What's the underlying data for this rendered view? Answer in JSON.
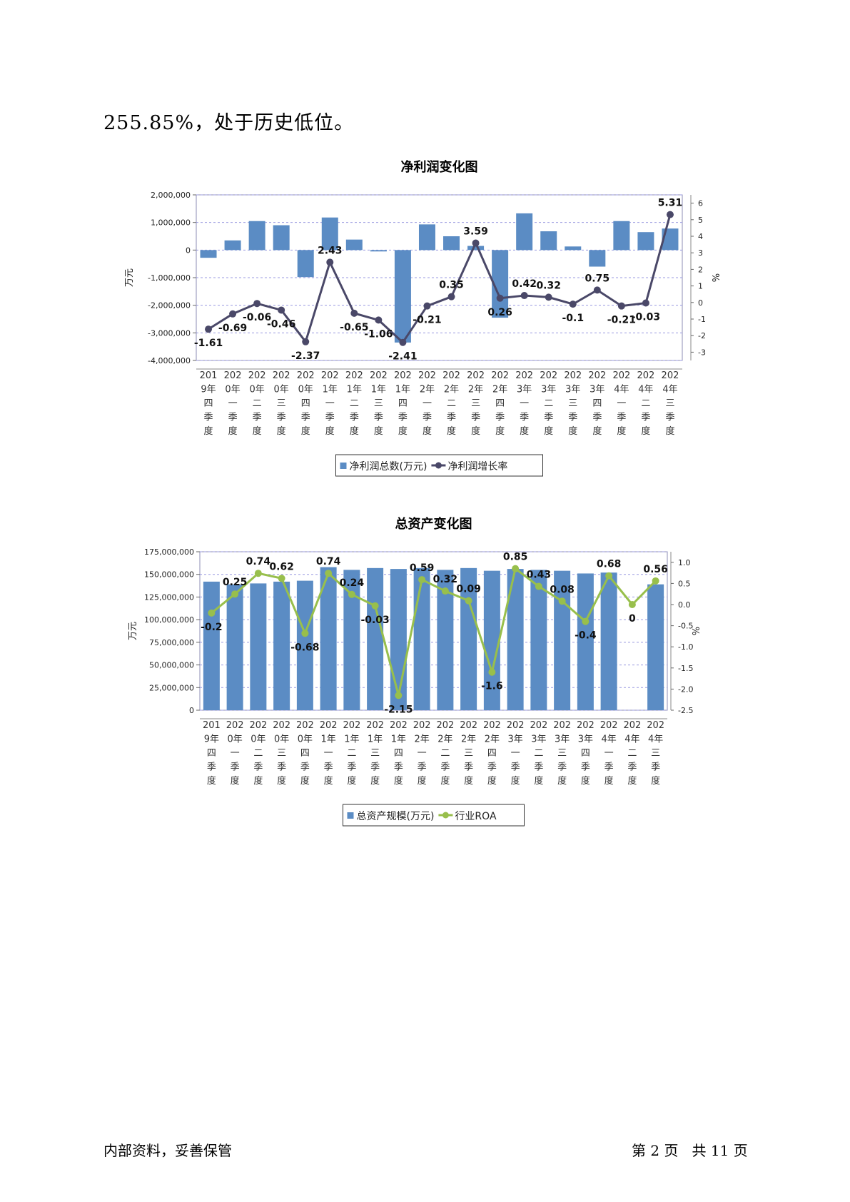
{
  "document": {
    "intro_text": "255.85%，处于历史低位。",
    "footer_left": "内部资料，妥善保管",
    "footer_page": {
      "prefix": "第",
      "current": "2",
      "mid": "页",
      "total_prefix": "共",
      "total": "11",
      "suffix": "页"
    }
  },
  "chart_data": [
    {
      "type": "bar+line",
      "title": "净利润变化图",
      "ylabel": "万元",
      "y2label": "%",
      "ylim": [
        -4000000,
        2000000
      ],
      "yticks": [
        2000000,
        1000000,
        0,
        -1000000,
        -2000000,
        -3000000,
        -4000000
      ],
      "ytick_labels": [
        "2,000,000",
        "1,000,000",
        "0",
        "-1,000,000",
        "-2,000,000",
        "-3,000,000",
        "-4,000,000"
      ],
      "y2lim": [
        -3.5,
        6.5
      ],
      "y2ticks": [
        "6",
        "5",
        "4",
        "3",
        "2",
        "1",
        "0",
        "-1",
        "-2",
        "-3"
      ],
      "categories": [
        [
          "201",
          "9年",
          "四",
          "季",
          "度"
        ],
        [
          "202",
          "0年",
          "一",
          "季",
          "度"
        ],
        [
          "202",
          "0年",
          "二",
          "季",
          "度"
        ],
        [
          "202",
          "0年",
          "三",
          "季",
          "度"
        ],
        [
          "202",
          "0年",
          "四",
          "季",
          "度"
        ],
        [
          "202",
          "1年",
          "一",
          "季",
          "度"
        ],
        [
          "202",
          "1年",
          "二",
          "季",
          "度"
        ],
        [
          "202",
          "1年",
          "三",
          "季",
          "度"
        ],
        [
          "202",
          "1年",
          "四",
          "季",
          "度"
        ],
        [
          "202",
          "2年",
          "一",
          "季",
          "度"
        ],
        [
          "202",
          "2年",
          "二",
          "季",
          "度"
        ],
        [
          "202",
          "2年",
          "三",
          "季",
          "度"
        ],
        [
          "202",
          "2年",
          "四",
          "季",
          "度"
        ],
        [
          "202",
          "3年",
          "一",
          "季",
          "度"
        ],
        [
          "202",
          "3年",
          "二",
          "季",
          "度"
        ],
        [
          "202",
          "3年",
          "三",
          "季",
          "度"
        ],
        [
          "202",
          "3年",
          "四",
          "季",
          "度"
        ],
        [
          "202",
          "4年",
          "一",
          "季",
          "度"
        ],
        [
          "202",
          "4年",
          "二",
          "季",
          "度"
        ],
        [
          "202",
          "4年",
          "三",
          "季",
          "度"
        ]
      ],
      "series": [
        {
          "name": "净利润总数(万元)",
          "type": "bar",
          "color": "#5b8cc4",
          "values": [
            -280000,
            350000,
            1050000,
            900000,
            -980000,
            1180000,
            380000,
            -50000,
            -3350000,
            930000,
            500000,
            150000,
            -2450000,
            1330000,
            680000,
            130000,
            -600000,
            1050000,
            650000,
            780000
          ]
        },
        {
          "name": "净利润增长率",
          "type": "line",
          "color": "#4a4868",
          "values": [
            -1.61,
            -0.69,
            -0.06,
            -0.46,
            -2.37,
            2.43,
            -0.65,
            -1.06,
            -2.41,
            -0.21,
            0.35,
            3.59,
            0.26,
            0.42,
            0.32,
            -0.1,
            0.75,
            -0.21,
            -0.03,
            5.31
          ],
          "labels": [
            "-1.61",
            "-0.69",
            "-0.06",
            "-0.46",
            "-2.37",
            "2.43",
            "-0.65",
            "-1.06",
            "-2.41",
            "-0.21",
            "0.35",
            "3.59",
            "0.26",
            "0.42",
            "0.32",
            "-0.1",
            "0.75",
            "-0.21",
            "-0.03",
            "5.31"
          ]
        }
      ],
      "legend": "bottom",
      "grid": true
    },
    {
      "type": "bar+line",
      "title": "总资产变化图",
      "ylabel": "万元",
      "y2label": "%",
      "ylim": [
        0,
        175000000
      ],
      "yticks": [
        175000000,
        150000000,
        125000000,
        100000000,
        75000000,
        50000000,
        25000000,
        0
      ],
      "ytick_labels": [
        "175,000,000",
        "150,000,000",
        "125,000,000",
        "100,000,000",
        "75,000,000",
        "50,000,000",
        "25,000,000",
        "0"
      ],
      "y2lim": [
        -2.5,
        1.25
      ],
      "y2ticks": [
        "1.0",
        "0.5",
        "0.0",
        "-0.5",
        "-1.0",
        "-1.5",
        "-2.0",
        "-2.5"
      ],
      "categories": [
        [
          "201",
          "9年",
          "四",
          "季",
          "度"
        ],
        [
          "202",
          "0年",
          "一",
          "季",
          "度"
        ],
        [
          "202",
          "0年",
          "二",
          "季",
          "度"
        ],
        [
          "202",
          "0年",
          "三",
          "季",
          "度"
        ],
        [
          "202",
          "0年",
          "四",
          "季",
          "度"
        ],
        [
          "202",
          "1年",
          "一",
          "季",
          "度"
        ],
        [
          "202",
          "1年",
          "二",
          "季",
          "度"
        ],
        [
          "202",
          "1年",
          "三",
          "季",
          "度"
        ],
        [
          "202",
          "1年",
          "四",
          "季",
          "度"
        ],
        [
          "202",
          "2年",
          "一",
          "季",
          "度"
        ],
        [
          "202",
          "2年",
          "二",
          "季",
          "度"
        ],
        [
          "202",
          "2年",
          "三",
          "季",
          "度"
        ],
        [
          "202",
          "2年",
          "四",
          "季",
          "度"
        ],
        [
          "202",
          "3年",
          "一",
          "季",
          "度"
        ],
        [
          "202",
          "3年",
          "二",
          "季",
          "度"
        ],
        [
          "202",
          "3年",
          "三",
          "季",
          "度"
        ],
        [
          "202",
          "3年",
          "四",
          "季",
          "度"
        ],
        [
          "202",
          "4年",
          "一",
          "季",
          "度"
        ],
        [
          "202",
          "4年",
          "二",
          "季",
          "度"
        ],
        [
          "202",
          "4年",
          "三",
          "季",
          "度"
        ]
      ],
      "series": [
        {
          "name": "总资产规模(万元)",
          "type": "bar",
          "color": "#5b8cc4",
          "values": [
            142000000,
            139000000,
            140000000,
            142000000,
            143000000,
            158000000,
            155000000,
            157000000,
            156000000,
            157000000,
            155000000,
            157000000,
            154000000,
            156000000,
            155000000,
            154000000,
            151000000,
            152000000,
            null,
            139000000
          ]
        },
        {
          "name": "行业ROA",
          "type": "line",
          "color": "#98bf4c",
          "values": [
            -0.2,
            0.25,
            0.74,
            0.62,
            -0.68,
            0.74,
            0.24,
            -0.03,
            -2.15,
            0.59,
            0.32,
            0.09,
            -1.6,
            0.85,
            0.43,
            0.08,
            -0.4,
            0.68,
            0,
            0.56
          ],
          "labels": [
            "-0.2",
            "0.25",
            "0.74",
            "0.62",
            "-0.68",
            "0.74",
            "0.24",
            "-0.03",
            "-2.15",
            "0.59",
            "0.32",
            "0.09",
            "-1.6",
            "0.85",
            "0.43",
            "0.08",
            "-0.4",
            "0.68",
            "0",
            "0.56"
          ]
        }
      ],
      "legend": "bottom",
      "grid": true
    }
  ]
}
